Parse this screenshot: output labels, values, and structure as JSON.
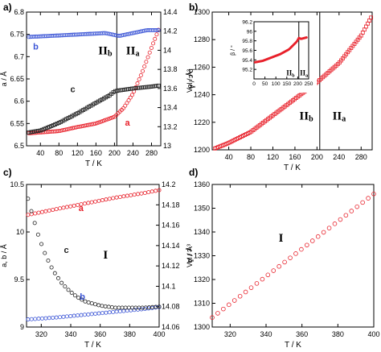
{
  "chart_data": [
    {
      "panel_label": "a)",
      "type": "scatter",
      "xlabel": "T / K",
      "ylabel_left": "a / Å",
      "ylabel_right": "b,c / Å",
      "xlim": [
        10,
        300
      ],
      "ylim_left": [
        6.5,
        6.8
      ],
      "ylim_right": [
        13.0,
        14.4
      ],
      "xticks": [
        40,
        80,
        120,
        160,
        200,
        240,
        280
      ],
      "yticks_left": [
        6.5,
        6.55,
        6.6,
        6.65,
        6.7,
        6.75,
        6.8
      ],
      "yticks_right": [
        13,
        13.2,
        13.4,
        13.6,
        13.8,
        14,
        14.2,
        14.4
      ],
      "ytick_labels_left": [
        "6.5",
        "6.55",
        "6.6",
        "6.65",
        "6.7",
        "6.75",
        "6.8"
      ],
      "ytick_labels_right": [
        "13",
        "13.2",
        "13.4",
        "13.6",
        "13.8",
        "14",
        "14.2",
        "14.4"
      ],
      "phase_boundary_T": 205,
      "phase_labels": [
        {
          "main": "II",
          "sub": "b",
          "T": 165,
          "y": 6.705
        },
        {
          "main": "II",
          "sub": "a",
          "T": 225,
          "y": 6.705
        }
      ],
      "series": [
        {
          "name": "a",
          "axis": "left",
          "color": "#e8202a",
          "T": [
            15,
            40,
            80,
            120,
            160,
            200,
            220,
            240,
            260,
            280,
            295
          ],
          "y": [
            6.528,
            6.53,
            6.533,
            6.542,
            6.55,
            6.565,
            6.585,
            6.617,
            6.665,
            6.72,
            6.76
          ]
        },
        {
          "name": "b",
          "axis": "right",
          "color": "#3b55d6",
          "T": [
            15,
            60,
            100,
            140,
            180,
            200,
            210,
            240,
            270,
            295
          ],
          "y": [
            14.14,
            14.15,
            14.16,
            14.17,
            14.18,
            14.16,
            14.15,
            14.18,
            14.21,
            14.21
          ]
        },
        {
          "name": "c",
          "axis": "right",
          "color": "#222222",
          "T": [
            15,
            40,
            80,
            120,
            160,
            190,
            200,
            210,
            240,
            280,
            295
          ],
          "y": [
            13.14,
            13.16,
            13.24,
            13.34,
            13.45,
            13.53,
            13.57,
            13.58,
            13.6,
            13.62,
            13.63
          ]
        }
      ],
      "series_labels": [
        {
          "text": "a",
          "color": "#e8202a",
          "T": 228,
          "y": 6.545
        },
        {
          "text": "b",
          "color": "#3b55d6",
          "T": 30,
          "y": 6.716
        },
        {
          "text": "c",
          "color": "#222222",
          "T": 110,
          "y": 6.62
        }
      ]
    },
    {
      "panel_label": "b)",
      "type": "scatter",
      "xlabel": "T / K",
      "ylabel": "Vol / Å³",
      "xlim": [
        10,
        300
      ],
      "ylim": [
        1200,
        1300
      ],
      "xticks": [
        40,
        80,
        120,
        160,
        200,
        240,
        280
      ],
      "yticks": [
        1200,
        1220,
        1240,
        1260,
        1280,
        1300
      ],
      "phase_boundary_T": 205,
      "phase_labels": [
        {
          "main": "II",
          "sub": "b",
          "T": 168,
          "y": 1222
        },
        {
          "main": "II",
          "sub": "a",
          "T": 228,
          "y": 1222
        }
      ],
      "series": [
        {
          "name": "Vol",
          "color": "#e8202a",
          "T": [
            15,
            40,
            80,
            120,
            160,
            200,
            240,
            280,
            298
          ],
          "y": [
            1201,
            1205,
            1213,
            1225,
            1237,
            1249,
            1263,
            1283,
            1296
          ]
        }
      ],
      "inset": {
        "ylabel": "β / °",
        "xlim": [
          0,
          250
        ],
        "ylim": [
          95.0,
          96.2
        ],
        "xticks": [
          0,
          50,
          100,
          150,
          200,
          250
        ],
        "yticks": [
          95.2,
          95.4,
          95.6,
          95.8,
          96.0,
          96.2
        ],
        "ytick_labels": [
          "95.2",
          "95.4",
          "95.6",
          "95.8",
          "96",
          "96.2"
        ],
        "phase_boundary_T": 205,
        "phase_labels": [
          {
            "main": "II",
            "sub": "b",
            "T": 148,
            "y": 95.08
          },
          {
            "main": "II",
            "sub": "a",
            "T": 210,
            "y": 95.08
          }
        ],
        "series": [
          {
            "name": "β",
            "color": "#e8202a",
            "T": [
              5,
              40,
              80,
              120,
              160,
              195,
              205,
              215,
              240
            ],
            "y": [
              95.35,
              95.38,
              95.45,
              95.52,
              95.62,
              95.78,
              95.86,
              95.84,
              95.87
            ]
          }
        ]
      }
    },
    {
      "panel_label": "c)",
      "type": "scatter",
      "xlabel": "T / K",
      "ylabel_left": "a, b / Å",
      "ylabel_right": "c / Å",
      "xlim": [
        310,
        400
      ],
      "ylim_left": [
        9.0,
        10.5
      ],
      "ylim_right": [
        14.06,
        14.2
      ],
      "xticks": [
        320,
        340,
        360,
        380,
        400
      ],
      "yticks_left": [
        9.0,
        9.5,
        10.0,
        10.5
      ],
      "yticks_right": [
        14.06,
        14.08,
        14.1,
        14.12,
        14.14,
        14.16,
        14.18,
        14.2
      ],
      "ytick_labels_left": [
        "9",
        "9.5",
        "10",
        "10.5"
      ],
      "ytick_labels_right": [
        "14.06",
        "14.08",
        "14.1",
        "14.12",
        "14.14",
        "14.16",
        "14.18",
        "14.2"
      ],
      "phase_labels": [
        {
          "main": "I",
          "sub": "",
          "T": 362,
          "y": 9.72
        }
      ],
      "series": [
        {
          "name": "a",
          "axis": "left",
          "color": "#e8202a",
          "T": [
            311,
            330,
            350,
            370,
            390,
            400
          ],
          "y": [
            10.18,
            10.24,
            10.3,
            10.36,
            10.41,
            10.44
          ]
        },
        {
          "name": "b",
          "axis": "left",
          "color": "#3b55d6",
          "T": [
            311,
            330,
            350,
            370,
            390,
            400
          ],
          "y": [
            9.08,
            9.1,
            9.13,
            9.16,
            9.19,
            9.21
          ]
        },
        {
          "name": "c",
          "axis": "right",
          "color": "#222222",
          "T": [
            311,
            314,
            318,
            322,
            326,
            330,
            334,
            338,
            342,
            346,
            350,
            355,
            360,
            365,
            370,
            380,
            390,
            400
          ],
          "y": [
            14.186,
            14.17,
            14.15,
            14.134,
            14.121,
            14.111,
            14.103,
            14.097,
            14.092,
            14.088,
            14.085,
            14.083,
            14.081,
            14.08,
            14.079,
            14.079,
            14.079,
            14.08
          ]
        }
      ],
      "series_labels": [
        {
          "text": "a",
          "color": "#e8202a",
          "T": 347,
          "y": 10.22
        },
        {
          "text": "b",
          "color": "#3b55d6",
          "T": 348,
          "y": 9.29
        },
        {
          "text": "c",
          "color": "#222222",
          "T": 337,
          "y": 9.78
        }
      ]
    },
    {
      "panel_label": "d)",
      "type": "scatter",
      "xlabel": "T / K",
      "ylabel": "Vol / Å³",
      "xlim": [
        310,
        400
      ],
      "ylim": [
        1300,
        1360
      ],
      "xticks": [
        320,
        340,
        360,
        380,
        400
      ],
      "yticks": [
        1300,
        1310,
        1320,
        1330,
        1340,
        1350,
        1360
      ],
      "phase_labels": [
        {
          "main": "I",
          "sub": "",
          "T": 347,
          "y": 1336
        }
      ],
      "series": [
        {
          "name": "Vol",
          "color": "#e8202a",
          "T": [
            310,
            400
          ],
          "y": [
            1304,
            1356
          ]
        }
      ]
    }
  ]
}
